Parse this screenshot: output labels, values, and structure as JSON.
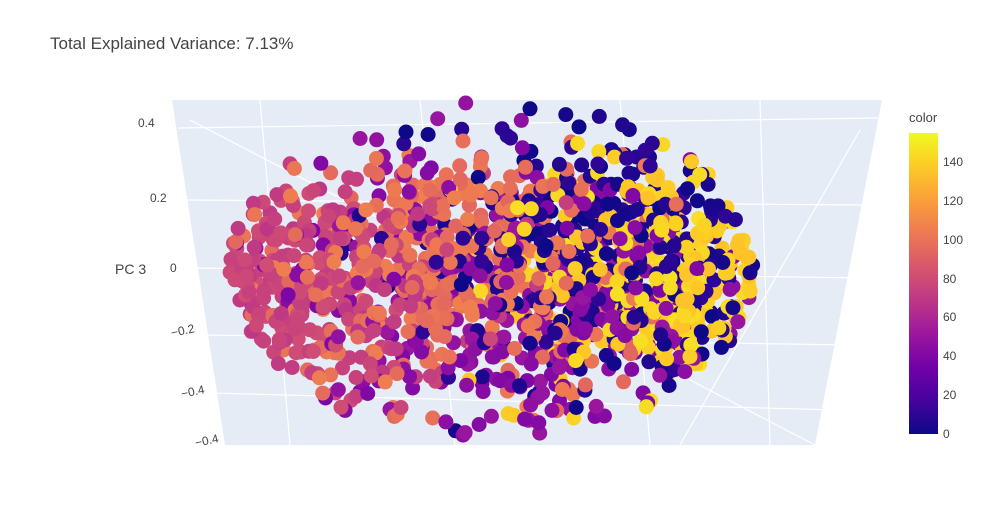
{
  "title": "Total Explained Variance: 7.13%",
  "chart_data": {
    "type": "scatter",
    "dimension": "3d",
    "title": "Total Explained Variance: 7.13%",
    "axes": {
      "z": {
        "label": "PC 3",
        "ticks": [
          "0.4",
          "0.2",
          "0",
          "−0.2",
          "−0.4",
          "−0.4"
        ]
      }
    },
    "colorbar": {
      "title": "color",
      "range": [
        0,
        155
      ],
      "ticks": [
        "0",
        "20",
        "40",
        "60",
        "80",
        "100",
        "120",
        "140"
      ],
      "colorscale": "plasma"
    },
    "clusters": [
      {
        "color_value": 75,
        "center_x": -0.3,
        "center_z": -0.02,
        "spread": 0.14
      },
      {
        "color_value": 100,
        "center_x": -0.05,
        "center_z": 0.02,
        "spread": 0.16
      },
      {
        "color_value": 140,
        "center_x": 0.3,
        "center_z": 0.0,
        "spread": 0.14
      },
      {
        "color_value": 5,
        "center_x": 0.2,
        "center_z": 0.05,
        "spread": 0.16
      },
      {
        "color_value": 45,
        "center_x": 0.05,
        "center_z": -0.05,
        "spread": 0.2
      }
    ],
    "colors": {
      "plasma_stops": [
        "#0d0887",
        "#46039f",
        "#7201a8",
        "#9c179e",
        "#bd3786",
        "#d8576b",
        "#ed7953",
        "#fb9f3a",
        "#fdca26",
        "#f0f921"
      ],
      "pane": "#e5ecf6"
    }
  }
}
